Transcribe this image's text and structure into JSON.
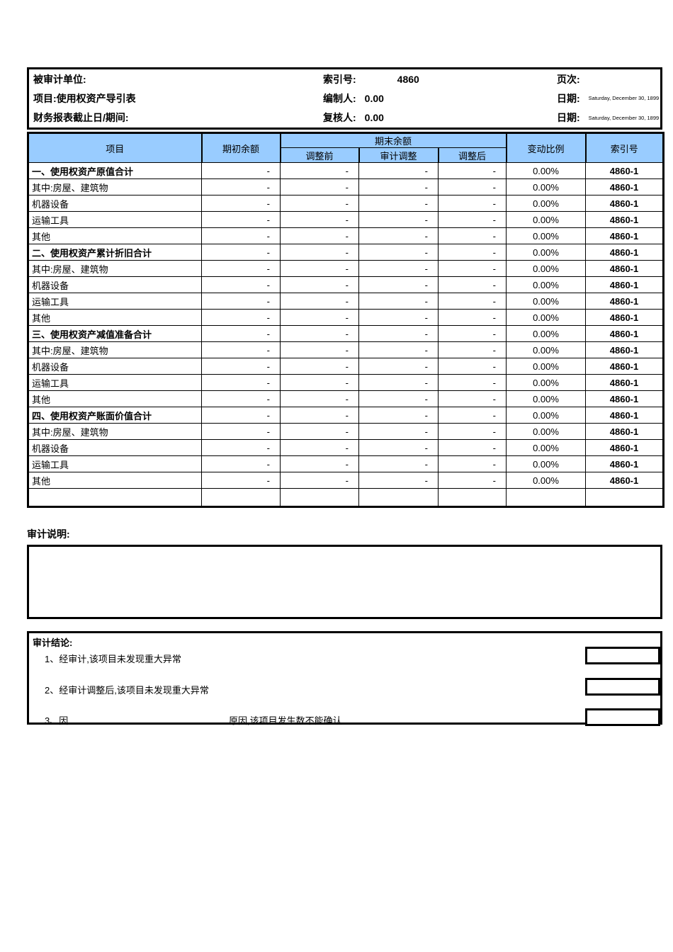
{
  "header": {
    "audited_entity_label": "被审计单位:",
    "project_label": "项目:使用权资产导引表",
    "period_label": "财务报表截止日/期间:",
    "index_label": "索引号:",
    "index_value": "4860",
    "preparer_label": "编制人:",
    "preparer_value": "0.00",
    "reviewer_label": "复核人:",
    "reviewer_value": "0.00",
    "page_label": "页次:",
    "date_label_1": "日期:",
    "date_value_1": "Saturday, December 30, 1899",
    "date_label_2": "日期:",
    "date_value_2": "Saturday, December 30, 1899"
  },
  "table": {
    "columns": {
      "item": "项目",
      "opening": "期初余额",
      "closing_group": "期末余额",
      "before_adj": "调整前",
      "audit_adj": "审计调整",
      "after_adj": "调整后",
      "change_ratio": "变动比例",
      "index_no": "索引号"
    },
    "rows": [
      {
        "label": "一、使用权资产原值合计",
        "bold": true,
        "opening": "-",
        "before": "-",
        "adj": "-",
        "after": "-",
        "change": "0.00%",
        "index": "4860-1"
      },
      {
        "label": "其中:房屋、建筑物",
        "bold": false,
        "opening": "-",
        "before": "-",
        "adj": "-",
        "after": "-",
        "change": "0.00%",
        "index": "4860-1"
      },
      {
        "label": "机器设备",
        "bold": false,
        "opening": "-",
        "before": "-",
        "adj": "-",
        "after": "-",
        "change": "0.00%",
        "index": "4860-1"
      },
      {
        "label": "运输工具",
        "bold": false,
        "opening": "-",
        "before": "-",
        "adj": "-",
        "after": "-",
        "change": "0.00%",
        "index": "4860-1"
      },
      {
        "label": "其他",
        "bold": false,
        "opening": "-",
        "before": "-",
        "adj": "-",
        "after": "-",
        "change": "0.00%",
        "index": "4860-1"
      },
      {
        "label": "二、使用权资产累计折旧合计",
        "bold": true,
        "opening": "-",
        "before": "-",
        "adj": "-",
        "after": "-",
        "change": "0.00%",
        "index": "4860-1"
      },
      {
        "label": "其中:房屋、建筑物",
        "bold": false,
        "opening": "-",
        "before": "-",
        "adj": "-",
        "after": "-",
        "change": "0.00%",
        "index": "4860-1"
      },
      {
        "label": "机器设备",
        "bold": false,
        "opening": "-",
        "before": "-",
        "adj": "-",
        "after": "-",
        "change": "0.00%",
        "index": "4860-1"
      },
      {
        "label": "运输工具",
        "bold": false,
        "opening": "-",
        "before": "-",
        "adj": "-",
        "after": "-",
        "change": "0.00%",
        "index": "4860-1"
      },
      {
        "label": "其他",
        "bold": false,
        "opening": "-",
        "before": "-",
        "adj": "-",
        "after": "-",
        "change": "0.00%",
        "index": "4860-1"
      },
      {
        "label": "三、使用权资产减值准备合计",
        "bold": true,
        "opening": "-",
        "before": "-",
        "adj": "-",
        "after": "-",
        "change": "0.00%",
        "index": "4860-1"
      },
      {
        "label": "其中:房屋、建筑物",
        "bold": false,
        "opening": "-",
        "before": "-",
        "adj": "-",
        "after": "-",
        "change": "0.00%",
        "index": "4860-1"
      },
      {
        "label": "机器设备",
        "bold": false,
        "opening": "-",
        "before": "-",
        "adj": "-",
        "after": "-",
        "change": "0.00%",
        "index": "4860-1"
      },
      {
        "label": "运输工具",
        "bold": false,
        "opening": "-",
        "before": "-",
        "adj": "-",
        "after": "-",
        "change": "0.00%",
        "index": "4860-1"
      },
      {
        "label": "其他",
        "bold": false,
        "opening": "-",
        "before": "-",
        "adj": "-",
        "after": "-",
        "change": "0.00%",
        "index": "4860-1"
      },
      {
        "label": "四、使用权资产账面价值合计",
        "bold": true,
        "opening": "-",
        "before": "-",
        "adj": "-",
        "after": "-",
        "change": "0.00%",
        "index": "4860-1"
      },
      {
        "label": "其中:房屋、建筑物",
        "bold": false,
        "opening": "-",
        "before": "-",
        "adj": "-",
        "after": "-",
        "change": "0.00%",
        "index": "4860-1"
      },
      {
        "label": "机器设备",
        "bold": false,
        "opening": "-",
        "before": "-",
        "adj": "-",
        "after": "-",
        "change": "0.00%",
        "index": "4860-1"
      },
      {
        "label": "运输工具",
        "bold": false,
        "opening": "-",
        "before": "-",
        "adj": "-",
        "after": "-",
        "change": "0.00%",
        "index": "4860-1"
      },
      {
        "label": "其他",
        "bold": false,
        "opening": "-",
        "before": "-",
        "adj": "-",
        "after": "-",
        "change": "0.00%",
        "index": "4860-1"
      }
    ]
  },
  "audit_notes": {
    "label": "审计说明:"
  },
  "audit_conclusion": {
    "title": "审计结论:",
    "item1": "1、经审计,该项目未发现重大异常",
    "item2": "2、经审计调整后,该项目未发现重大异常",
    "item3_prefix": "3、因",
    "item3_suffix": "原因,该项目发生数不能确认"
  },
  "colors": {
    "header_blue": "#99CCFF",
    "cell_yellow": "#FFFF00",
    "border_black": "#000000"
  }
}
